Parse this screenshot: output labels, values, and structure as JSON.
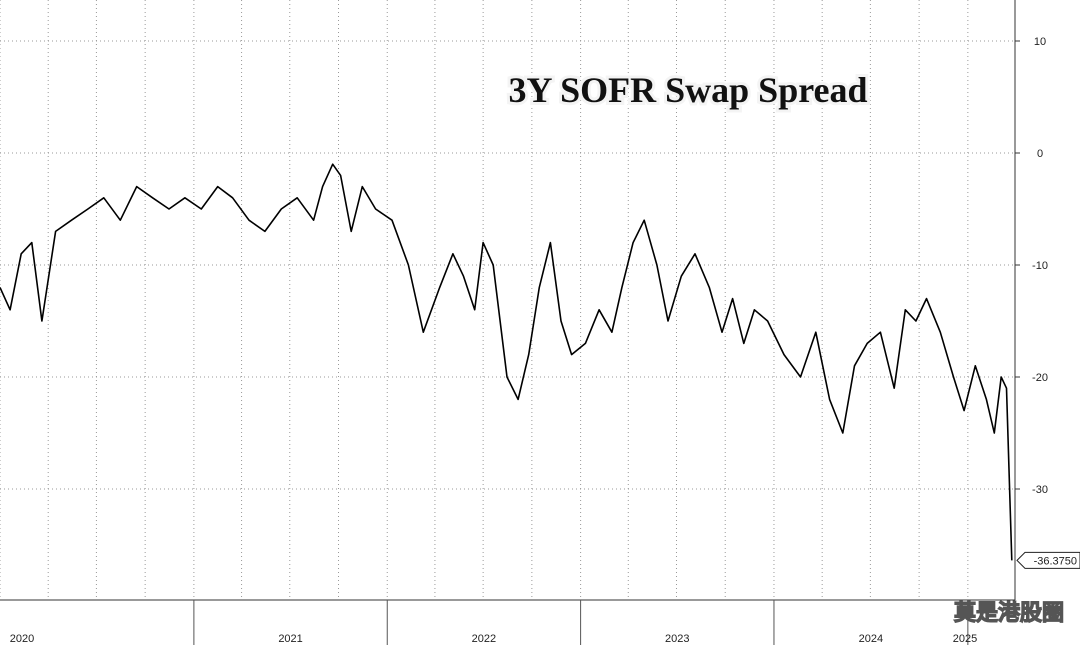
{
  "chart_data": {
    "type": "line",
    "title": "3Y SOFR Swap Spread",
    "xlabel": "",
    "ylabel": "",
    "x_range": [
      "2020-01-01",
      "2025-03-31"
    ],
    "ylim": [
      -40,
      14
    ],
    "y_ticks": [
      10,
      0,
      -10,
      -20,
      -30
    ],
    "y_tick_labels": [
      "10",
      "0",
      "-10",
      "-20",
      "-30"
    ],
    "x_tick_labels": [
      "2020",
      "2021",
      "2022",
      "2023",
      "2024",
      "2025"
    ],
    "grid": true,
    "legend": "none",
    "last_value_label": "-36.3750",
    "last_value": -36.375,
    "series": [
      {
        "color": "#000000",
        "x": [
          "2020-01-01",
          "2020-01-20",
          "2020-02-10",
          "2020-03-01",
          "2020-03-20",
          "2020-04-15",
          "2020-05-15",
          "2020-06-15",
          "2020-07-15",
          "2020-08-15",
          "2020-09-15",
          "2020-10-15",
          "2020-11-15",
          "2020-12-15",
          "2021-01-15",
          "2021-02-15",
          "2021-03-15",
          "2021-04-15",
          "2021-05-15",
          "2021-06-15",
          "2021-07-15",
          "2021-08-15",
          "2021-09-01",
          "2021-09-20",
          "2021-10-05",
          "2021-10-25",
          "2021-11-15",
          "2021-12-10",
          "2022-01-10",
          "2022-02-10",
          "2022-03-10",
          "2022-04-10",
          "2022-05-05",
          "2022-05-25",
          "2022-06-15",
          "2022-07-01",
          "2022-07-20",
          "2022-08-15",
          "2022-09-05",
          "2022-09-25",
          "2022-10-15",
          "2022-11-05",
          "2022-11-25",
          "2022-12-15",
          "2023-01-10",
          "2023-02-05",
          "2023-03-01",
          "2023-03-20",
          "2023-04-10",
          "2023-05-01",
          "2023-05-25",
          "2023-06-15",
          "2023-07-10",
          "2023-08-05",
          "2023-09-01",
          "2023-09-25",
          "2023-10-15",
          "2023-11-05",
          "2023-11-25",
          "2023-12-20",
          "2024-01-20",
          "2024-02-20",
          "2024-03-20",
          "2024-04-15",
          "2024-05-10",
          "2024-06-01",
          "2024-06-25",
          "2024-07-20",
          "2024-08-15",
          "2024-09-05",
          "2024-09-25",
          "2024-10-15",
          "2024-11-10",
          "2024-12-05",
          "2024-12-25",
          "2025-01-15",
          "2025-02-05",
          "2025-02-20",
          "2025-03-05",
          "2025-03-15",
          "2025-03-25"
        ],
        "y": [
          -12,
          -14,
          -9,
          -8,
          -15,
          -7,
          -6,
          -5,
          -4,
          -6,
          -3,
          -4,
          -5,
          -4,
          -5,
          -3,
          -4,
          -6,
          -7,
          -5,
          -4,
          -6,
          -3,
          -1,
          -2,
          -7,
          -3,
          -5,
          -6,
          -10,
          -16,
          -12,
          -9,
          -11,
          -14,
          -8,
          -10,
          -20,
          -22,
          -18,
          -12,
          -8,
          -15,
          -18,
          -17,
          -14,
          -16,
          -12,
          -8,
          -6,
          -10,
          -15,
          -11,
          -9,
          -12,
          -16,
          -13,
          -17,
          -14,
          -15,
          -18,
          -20,
          -16,
          -22,
          -25,
          -19,
          -17,
          -16,
          -21,
          -14,
          -15,
          -13,
          -16,
          -20,
          -23,
          -19,
          -22,
          -25,
          -20,
          -21,
          -36.375
        ]
      }
    ]
  },
  "watermark": "莫是港股圈"
}
